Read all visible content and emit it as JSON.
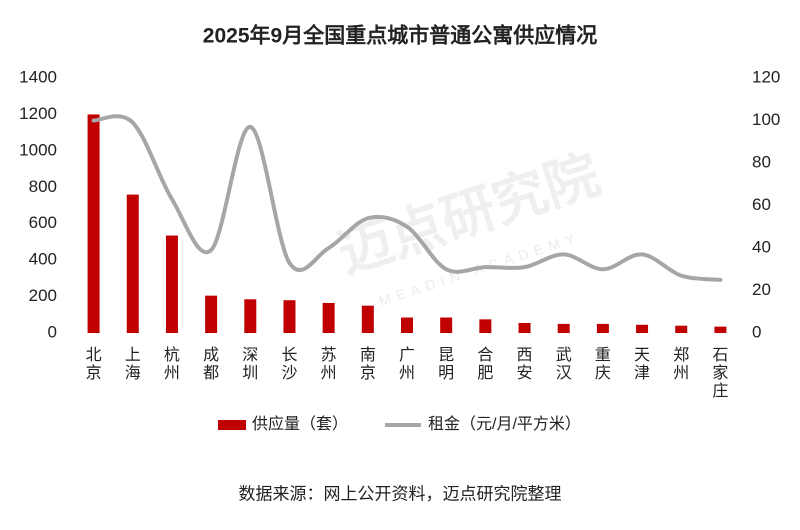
{
  "chart_data": {
    "type": "bar",
    "title": "2025年9月全国重点城市普通公寓供应情况",
    "categories": [
      "北京",
      "上海",
      "杭州",
      "成都",
      "深圳",
      "长沙",
      "苏州",
      "南京",
      "广州",
      "昆明",
      "合肥",
      "西安",
      "武汉",
      "重庆",
      "天津",
      "郑州",
      "石家庄"
    ],
    "series": [
      {
        "name": "供应量（套）",
        "type": "bar",
        "color": "#c00000",
        "axis": "y",
        "values": [
          1200,
          760,
          535,
          205,
          185,
          180,
          165,
          150,
          85,
          85,
          75,
          55,
          50,
          50,
          45,
          40,
          35
        ]
      },
      {
        "name": "租金（元/月/平方米）",
        "type": "line",
        "color": "#a6a6a6",
        "axis": "y2",
        "values": [
          100,
          99,
          63,
          39,
          97,
          33,
          40,
          54,
          50,
          30,
          31,
          31,
          37,
          30,
          37,
          27,
          25
        ]
      }
    ],
    "ylim": [
      0,
      1400
    ],
    "yticks": [
      0,
      200,
      400,
      600,
      800,
      1000,
      1200,
      1400
    ],
    "y2lim": [
      0,
      120
    ],
    "y2ticks": [
      0,
      20,
      40,
      60,
      80,
      100,
      120
    ],
    "legend": "bottom",
    "source": "数据来源：网上公开资料，迈点研究院整理",
    "watermark": "迈点研究院",
    "watermark_subtitle": "MEADIN ACADEMY"
  }
}
